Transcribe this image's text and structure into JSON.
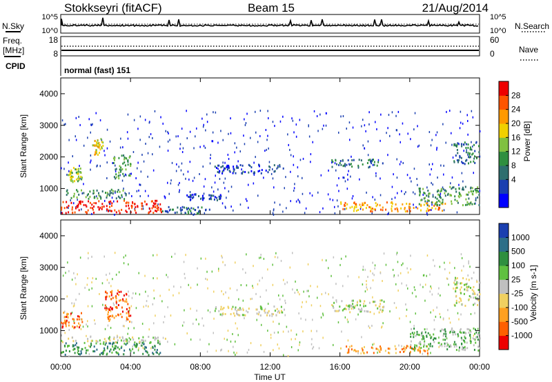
{
  "header": {
    "station": "Stokkseyri (fitACF)",
    "beam": "Beam 15",
    "date": "21/Aug/2014"
  },
  "noise_panel": {
    "left_label": "N.Sky",
    "left_ticks": [
      "10^5",
      "10^0"
    ],
    "right_label": "N.Search",
    "right_ticks": [
      "10^5",
      "10^0"
    ]
  },
  "freq_panel": {
    "left_label_line1": "Freq.",
    "left_label_line2": "[MHz]",
    "left_ticks": [
      "18",
      "8"
    ],
    "right_label": "Nave",
    "right_ticks": [
      "60",
      "0"
    ]
  },
  "cpid_panel": {
    "label": "CPID",
    "text": "normal (fast) 151"
  },
  "chart_data": [
    {
      "type": "heatmap",
      "name": "power",
      "ylabel": "Slant Range [km]",
      "yticks": [
        1000,
        2000,
        3000,
        4000
      ],
      "ylim": [
        180,
        4500
      ],
      "xlim": [
        0,
        24
      ],
      "colorbar": {
        "label": "Power [dB]",
        "ticks": [
          "28",
          "24",
          "20",
          "16",
          "12",
          "8",
          "4"
        ],
        "colors": [
          "#0000ff",
          "#1a3fb0",
          "#2e6e6e",
          "#2f8f3f",
          "#80c040",
          "#f0d000",
          "#ff9900",
          "#ff5500",
          "#ee0000"
        ]
      },
      "features": [
        {
          "t0": 0.0,
          "t1": 5.8,
          "r0": 250,
          "r1": 650,
          "level": 8
        },
        {
          "t0": 5.8,
          "t1": 8.5,
          "r0": 230,
          "r1": 450,
          "level": 2
        },
        {
          "t0": 0.3,
          "t1": 3.8,
          "r0": 700,
          "r1": 1000,
          "level": 3
        },
        {
          "t0": 0.4,
          "t1": 1.2,
          "r0": 1200,
          "r1": 1700,
          "level": 4
        },
        {
          "t0": 1.8,
          "t1": 2.4,
          "r0": 2100,
          "r1": 2600,
          "level": 5
        },
        {
          "t0": 3.0,
          "t1": 4.0,
          "r0": 1300,
          "r1": 2100,
          "level": 3
        },
        {
          "t0": 8.8,
          "t1": 12.8,
          "r0": 1500,
          "r1": 1800,
          "level": 1
        },
        {
          "t0": 7.2,
          "t1": 9.2,
          "r0": 650,
          "r1": 850,
          "level": 1
        },
        {
          "t0": 15.5,
          "t1": 18.5,
          "r0": 1700,
          "r1": 1950,
          "level": 2
        },
        {
          "t0": 16.0,
          "t1": 22.0,
          "r0": 300,
          "r1": 600,
          "level": 6
        },
        {
          "t0": 20.5,
          "t1": 24.0,
          "r0": 500,
          "r1": 1100,
          "level": 3
        },
        {
          "t0": 22.5,
          "t1": 24.0,
          "r0": 1800,
          "r1": 2500,
          "level": 2
        }
      ]
    },
    {
      "type": "heatmap",
      "name": "velocity",
      "ylabel": "Slant Range [km]",
      "yticks": [
        1000,
        2000,
        3000,
        4000
      ],
      "ylim": [
        180,
        4500
      ],
      "xlim": [
        0,
        24
      ],
      "xticks": [
        "00:00",
        "04:00",
        "08:00",
        "12:00",
        "16:00",
        "20:00",
        "00:00"
      ],
      "xlabel": "Time UT",
      "colorbar": {
        "label": "Velocity [m s-1]",
        "ticks": [
          "1000",
          "500",
          "100",
          "25",
          "-25",
          "-100",
          "-500",
          "-1000"
        ],
        "colors": [
          "#1a3fb0",
          "#2d6e88",
          "#2f8f3f",
          "#60c040",
          "#c0c0c0",
          "#f0d060",
          "#ffa020",
          "#ff6000",
          "#ee0000"
        ]
      },
      "features": [
        {
          "t0": 0.0,
          "t1": 5.8,
          "r0": 250,
          "r1": 650,
          "level": 2
        },
        {
          "t0": 0.0,
          "t1": 6.0,
          "r0": 650,
          "r1": 850,
          "level": 4
        },
        {
          "t0": 0.0,
          "t1": 1.2,
          "r0": 1100,
          "r1": 1600,
          "level": 7
        },
        {
          "t0": 2.5,
          "t1": 4.0,
          "r0": 1300,
          "r1": 2300,
          "level": 7
        },
        {
          "t0": 8.8,
          "t1": 12.8,
          "r0": 1500,
          "r1": 1800,
          "level": 4
        },
        {
          "t0": 15.5,
          "t1": 18.5,
          "r0": 1600,
          "r1": 2000,
          "level": 4
        },
        {
          "t0": 16.0,
          "t1": 21.0,
          "r0": 300,
          "r1": 550,
          "level": 6
        },
        {
          "t0": 20.0,
          "t1": 24.0,
          "r0": 400,
          "r1": 1100,
          "level": 3
        },
        {
          "t0": 22.5,
          "t1": 24.0,
          "r0": 1800,
          "r1": 2700,
          "level": 4
        }
      ]
    }
  ]
}
